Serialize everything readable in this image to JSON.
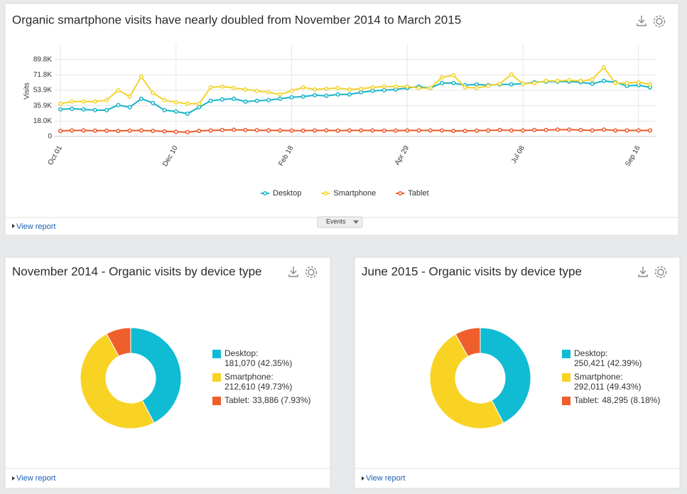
{
  "chart_data": [
    {
      "type": "line",
      "title": "Organic smartphone visits have nearly doubled from November 2014 to March 2015",
      "y_label": "Visits",
      "categories": [
        "Oct 01",
        null,
        null,
        null,
        null,
        null,
        null,
        null,
        null,
        null,
        "Dec 10",
        null,
        null,
        null,
        null,
        null,
        null,
        null,
        null,
        null,
        "Feb 18",
        null,
        null,
        null,
        null,
        null,
        null,
        null,
        null,
        null,
        "Apr 29",
        null,
        null,
        null,
        null,
        null,
        null,
        null,
        null,
        null,
        "Jul 08",
        null,
        null,
        null,
        null,
        null,
        null,
        null,
        null,
        null,
        "Sep 16",
        null
      ],
      "series": [
        {
          "name": "Desktop",
          "color": "#17b3c9",
          "values": [
            31600,
            32400,
            31600,
            30700,
            30700,
            36600,
            34100,
            44000,
            39100,
            30700,
            29100,
            26600,
            34100,
            41600,
            43200,
            44000,
            40700,
            41600,
            42400,
            44000,
            45700,
            46500,
            48200,
            47400,
            49000,
            49000,
            51500,
            53200,
            54000,
            54800,
            56500,
            58200,
            56500,
            62300,
            62300,
            59800,
            60700,
            59800,
            60700,
            60700,
            61500,
            63200,
            64000,
            64000,
            64000,
            63200,
            61500,
            64800,
            63200,
            59000,
            59800,
            57300
          ]
        },
        {
          "name": "Smartphone",
          "color": "#f1d42a",
          "values": [
            38200,
            40700,
            40700,
            40700,
            42400,
            54000,
            46500,
            69800,
            50700,
            42400,
            39900,
            38200,
            38200,
            57300,
            58200,
            56500,
            54800,
            53200,
            51500,
            49000,
            53200,
            57300,
            54800,
            55600,
            56500,
            54800,
            55600,
            57300,
            58200,
            58200,
            58200,
            56500,
            56500,
            68900,
            71400,
            57300,
            56500,
            59000,
            61500,
            72300,
            61500,
            62300,
            64800,
            64800,
            65600,
            64800,
            66500,
            80600,
            62300,
            62300,
            63200,
            60700
          ]
        },
        {
          "name": "Tablet",
          "color": "#ea5a2a",
          "values": [
            6500,
            7000,
            7000,
            6800,
            6800,
            6500,
            6800,
            7000,
            6500,
            6000,
            5500,
            5000,
            6500,
            7000,
            7500,
            7800,
            7500,
            7300,
            7000,
            7000,
            6800,
            6800,
            7000,
            7000,
            6800,
            7000,
            7000,
            7000,
            6800,
            6800,
            7000,
            7000,
            7000,
            7000,
            6500,
            6500,
            6800,
            7000,
            7500,
            7000,
            7000,
            7500,
            7500,
            8000,
            8000,
            7500,
            7000,
            8000,
            7000,
            7000,
            7000,
            7000
          ]
        }
      ],
      "ylim": [
        0,
        107760
      ],
      "yticks": [
        0,
        {
          "value": 17960,
          "label": "18.0K"
        },
        {
          "value": 35920,
          "label": "35.9K"
        },
        {
          "value": 53880,
          "label": "53.9K"
        },
        {
          "value": 71840,
          "label": "71.8K"
        },
        {
          "value": 89800,
          "label": "89.8K"
        }
      ],
      "grid": true,
      "legend": "bottom"
    },
    {
      "type": "donut",
      "title": "November 2014 - Organic visits by device type",
      "categories": [
        "Desktop:",
        "Smartphone:",
        "Tablet:"
      ],
      "values": [
        181070,
        212610,
        33886
      ],
      "value_labels": [
        "181,070 (42.35%)",
        "212,610 (49.73%)",
        "33,886 (7.93%)"
      ],
      "colors": [
        "#0fbcd4",
        "#f9d324",
        "#ef5f2c"
      ],
      "legend": "right"
    },
    {
      "type": "donut",
      "title": "June 2015 - Organic visits by device type",
      "categories": [
        "Desktop:",
        "Smartphone:",
        "Tablet:"
      ],
      "values": [
        250421,
        292011,
        48295
      ],
      "value_labels": [
        "250,421 (42.39%)",
        "292,011 (49.43%)",
        "48,295 (8.18%)"
      ],
      "colors": [
        "#0fbcd4",
        "#f9d324",
        "#ef5f2c"
      ],
      "legend": "right"
    }
  ],
  "panels": [
    {
      "link": "View report",
      "button": "Events"
    },
    {
      "link": "View report"
    },
    {
      "link": "View report"
    }
  ]
}
